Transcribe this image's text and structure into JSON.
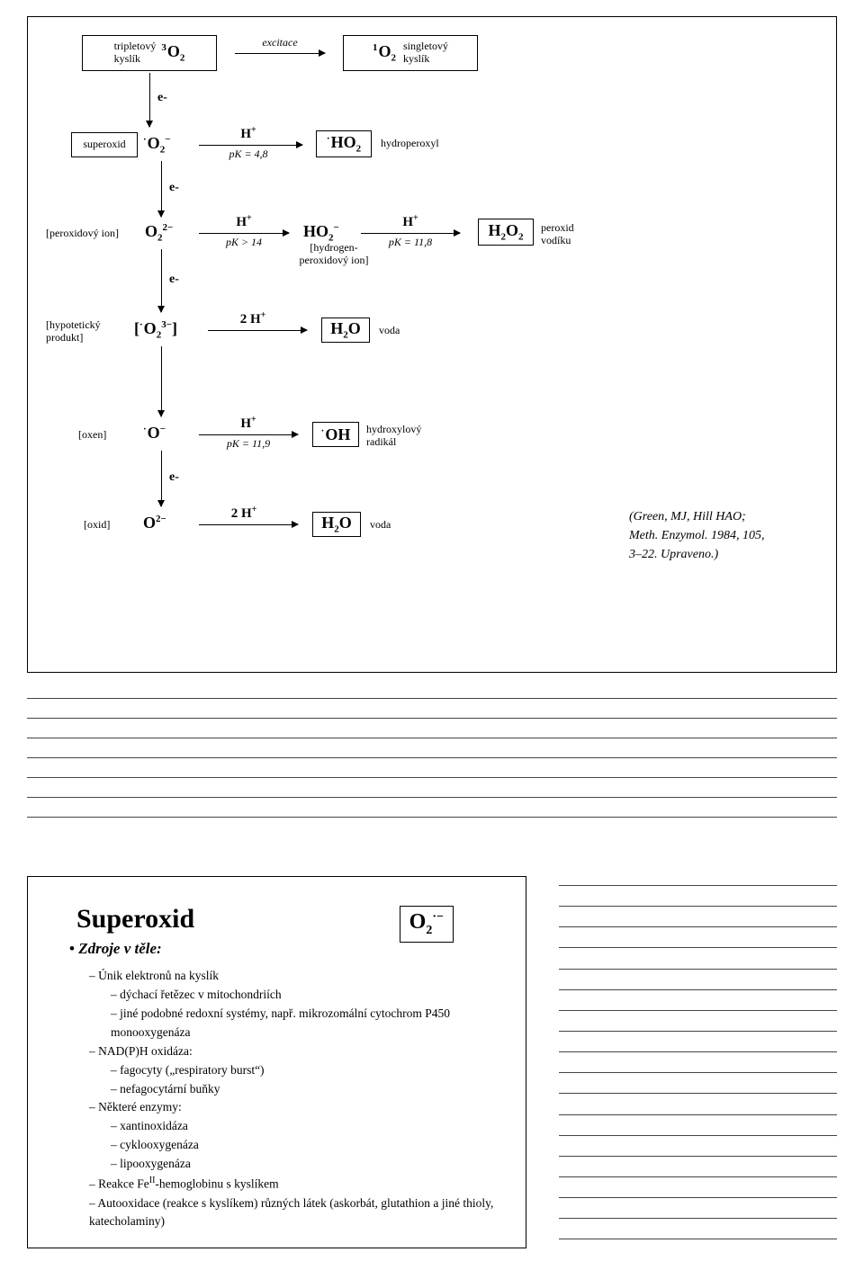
{
  "diagram": {
    "border_color": "#000000",
    "bg_color": "#ffffff",
    "text_color": "#000000",
    "rows": {
      "r1": {
        "left_label": "tripletový\nkyslík",
        "left_formula": "3O2",
        "arrow_label": "excitace",
        "right_formula": "1O2",
        "right_label": "singletový\nkyslík"
      },
      "r2": {
        "left_box_label": "superoxid",
        "left_formula": "·O2−",
        "arrow_top": "H+",
        "arrow_bottom": "pK = 4,8",
        "right_formula": "·HO2",
        "right_label": "hydroperoxyl"
      },
      "r3": {
        "left_bracket": "[peroxidový ion]",
        "left_formula": "O22−",
        "arrow1_top": "H+",
        "arrow1_bottom": "pK > 14",
        "mid_formula": "HO2−",
        "mid_label": "[hydrogen-\nperoxidový ion]",
        "arrow2_top": "H+",
        "arrow2_bottom": "pK = 11,8",
        "right_formula": "H2O2",
        "right_label": "peroxid\nvodíku"
      },
      "r4": {
        "left_bracket": "[hypotetický\nprodukt]",
        "left_formula": "[·O23−]",
        "arrow_top": "2 H+",
        "right_formula": "H2O",
        "right_label": "voda"
      },
      "r5": {
        "left_bracket": "[oxen]",
        "left_formula": "·O−",
        "arrow_top": "H+",
        "arrow_bottom": "pK = 11,9",
        "right_formula": "·OH",
        "right_label": "hydroxylový\nradikál"
      },
      "r6": {
        "left_bracket": "[oxid]",
        "left_formula": "O2−",
        "arrow_top": "2 H+",
        "right_formula": "H2O",
        "right_label": "voda"
      }
    },
    "electron_label": "e-",
    "citation": "(Green, MJ, Hill HAO;\nMeth. Enzymol. 1984, 105,\n3–22. Upraveno.)"
  },
  "middle_rules": {
    "count": 7,
    "color": "#444444"
  },
  "slide": {
    "title": "Superoxid",
    "formula": "O2·−",
    "subhead": "Zdroje v těle:",
    "items": [
      {
        "lvl": 1,
        "text": "Únik elektronů na kyslík"
      },
      {
        "lvl": 2,
        "text": "dýchací řetězec v mitochondriích"
      },
      {
        "lvl": 2,
        "text": "jiné podobné redoxní systémy, např. mikrozomální cytochrom P450 monooxygenáza"
      },
      {
        "lvl": 1,
        "text": "NAD(P)H oxidáza:"
      },
      {
        "lvl": 2,
        "text": "fagocyty („respiratory burst“)"
      },
      {
        "lvl": 2,
        "text": "nefagocytární buňky"
      },
      {
        "lvl": 1,
        "text": "Některé enzymy:"
      },
      {
        "lvl": 2,
        "text": "xantinoxidáza"
      },
      {
        "lvl": 2,
        "text": "cyklooxygenáza"
      },
      {
        "lvl": 2,
        "text": "lipooxygenáza"
      },
      {
        "lvl": 1,
        "text": "Reakce FeII-hemoglobinu s kyslíkem",
        "fe": true
      },
      {
        "lvl": 1,
        "text": "Autooxidace (reakce s kyslíkem) různých látek (askorbát, glutathion a jiné thioly, katecholaminy)"
      }
    ]
  },
  "side_rules": {
    "count": 18,
    "color": "#444444"
  }
}
